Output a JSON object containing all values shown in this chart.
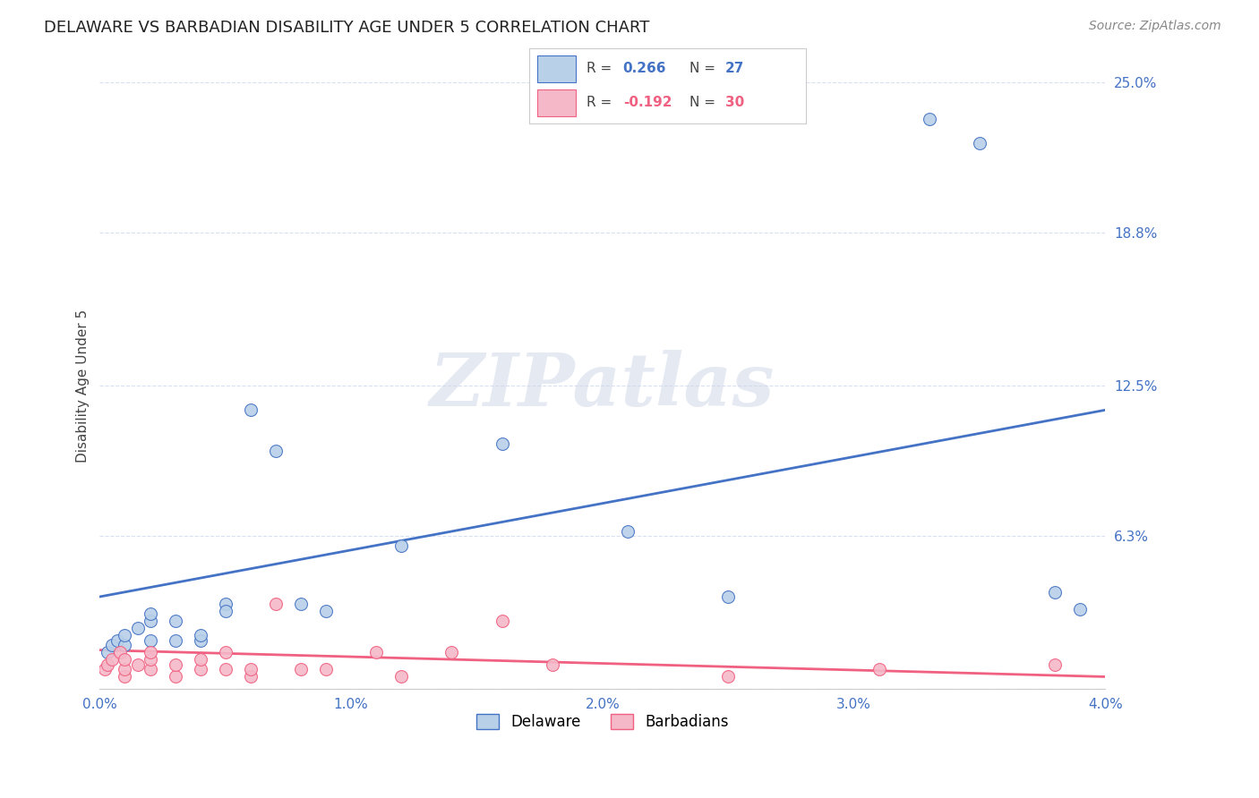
{
  "title": "DELAWARE VS BARBADIAN DISABILITY AGE UNDER 5 CORRELATION CHART",
  "source": "Source: ZipAtlas.com",
  "ylabel": "Disability Age Under 5",
  "xlim": [
    0.0,
    0.04
  ],
  "ylim": [
    0.0,
    0.25
  ],
  "yticks": [
    0.0,
    0.063,
    0.125,
    0.188,
    0.25
  ],
  "ytick_labels": [
    "",
    "6.3%",
    "12.5%",
    "18.8%",
    "25.0%"
  ],
  "xticks": [
    0.0,
    0.01,
    0.02,
    0.03,
    0.04
  ],
  "xtick_labels": [
    "0.0%",
    "1.0%",
    "2.0%",
    "3.0%",
    "4.0%"
  ],
  "watermark": "ZIPatlas",
  "delaware_R": "0.266",
  "delaware_N": "27",
  "barbadian_R": "-0.192",
  "barbadian_N": "30",
  "delaware_color": "#b8d0e8",
  "barbadian_color": "#f4b8c8",
  "delaware_line_color": "#4472c4",
  "barbadian_line_color": "#f06080",
  "delaware_x": [
    0.0003,
    0.0005,
    0.0007,
    0.001,
    0.001,
    0.0015,
    0.002,
    0.002,
    0.002,
    0.003,
    0.003,
    0.004,
    0.004,
    0.005,
    0.005,
    0.006,
    0.007,
    0.008,
    0.009,
    0.012,
    0.016,
    0.021,
    0.025,
    0.033,
    0.035,
    0.038,
    0.039
  ],
  "delaware_y": [
    0.015,
    0.018,
    0.02,
    0.018,
    0.022,
    0.025,
    0.02,
    0.028,
    0.031,
    0.02,
    0.028,
    0.02,
    0.022,
    0.035,
    0.032,
    0.115,
    0.098,
    0.035,
    0.032,
    0.059,
    0.101,
    0.065,
    0.038,
    0.235,
    0.225,
    0.04,
    0.033
  ],
  "barbadian_x": [
    0.0002,
    0.0003,
    0.0005,
    0.0008,
    0.001,
    0.001,
    0.001,
    0.0015,
    0.002,
    0.002,
    0.002,
    0.003,
    0.003,
    0.004,
    0.004,
    0.005,
    0.005,
    0.006,
    0.006,
    0.007,
    0.008,
    0.009,
    0.011,
    0.012,
    0.014,
    0.016,
    0.018,
    0.025,
    0.031,
    0.038
  ],
  "barbadian_y": [
    0.008,
    0.01,
    0.012,
    0.015,
    0.005,
    0.008,
    0.012,
    0.01,
    0.008,
    0.012,
    0.015,
    0.005,
    0.01,
    0.008,
    0.012,
    0.008,
    0.015,
    0.005,
    0.008,
    0.035,
    0.008,
    0.008,
    0.015,
    0.005,
    0.015,
    0.028,
    0.01,
    0.005,
    0.008,
    0.01
  ],
  "del_line_x0": 0.0,
  "del_line_y0": 0.038,
  "del_line_x1": 0.04,
  "del_line_y1": 0.115,
  "barb_line_x0": 0.0,
  "barb_line_y0": 0.016,
  "barb_line_x1": 0.04,
  "barb_line_y1": 0.005,
  "background_color": "#ffffff",
  "grid_color": "#d8dff0",
  "title_fontsize": 13,
  "axis_label_fontsize": 11,
  "tick_fontsize": 11,
  "source_fontsize": 10,
  "marker_size": 100
}
